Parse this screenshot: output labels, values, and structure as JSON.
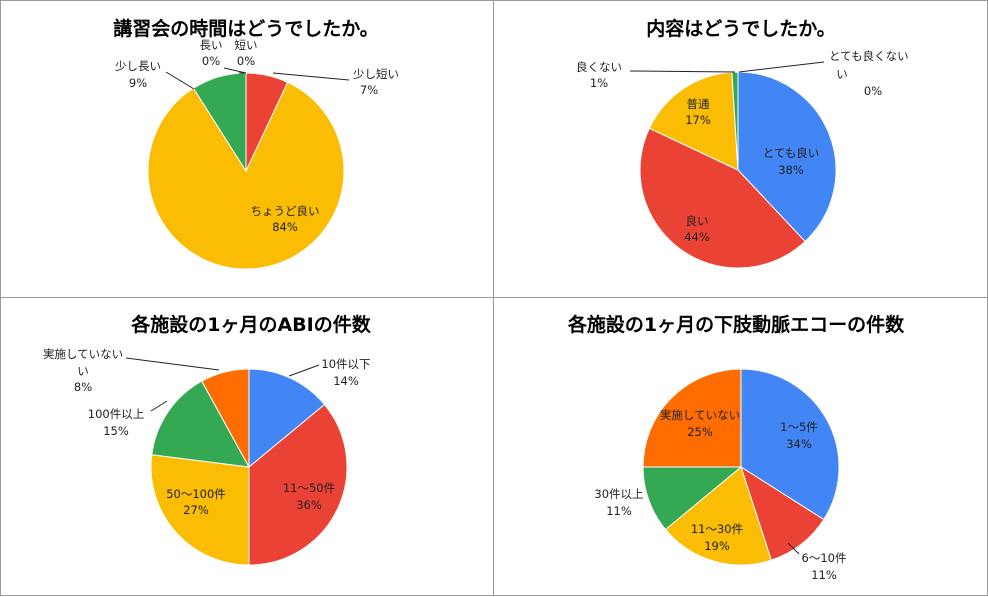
{
  "colors": {
    "blue": "#4285f4",
    "red": "#ea4335",
    "yellow": "#fbbc04",
    "green": "#34a853",
    "orange": "#ff6d01"
  },
  "chart_data": [
    {
      "type": "pie",
      "title": "講習会の時間はどうでしたか。",
      "slices": [
        {
          "label": "少し短い",
          "value": 7,
          "pct": "7%",
          "color": "#ea4335"
        },
        {
          "label": "ちょうど良い",
          "value": 84,
          "pct": "84%",
          "color": "#fbbc04"
        },
        {
          "label": "少し長い",
          "value": 9,
          "pct": "9%",
          "color": "#34a853"
        },
        {
          "label": "長い",
          "value": 0,
          "pct": "0%",
          "color": "#4285f4"
        },
        {
          "label": "短い",
          "value": 0,
          "pct": "0%",
          "color": "#ff6d01"
        }
      ]
    },
    {
      "type": "pie",
      "title": "内容はどうでしたか。",
      "slices": [
        {
          "label": "とても良い",
          "value": 38,
          "pct": "38%",
          "color": "#4285f4"
        },
        {
          "label": "良い",
          "value": 44,
          "pct": "44%",
          "color": "#ea4335"
        },
        {
          "label": "普通",
          "value": 17,
          "pct": "17%",
          "color": "#fbbc04"
        },
        {
          "label": "良くない",
          "value": 1,
          "pct": "1%",
          "color": "#34a853"
        },
        {
          "label": "とても良くない",
          "value": 0,
          "pct": "0%",
          "color": "#ff6d01"
        }
      ]
    },
    {
      "type": "pie",
      "title": "各施設の1ヶ月のABIの件数",
      "slices": [
        {
          "label": "10件以下",
          "value": 14,
          "pct": "14%",
          "color": "#4285f4"
        },
        {
          "label": "11～50件",
          "value": 36,
          "pct": "36%",
          "color": "#ea4335"
        },
        {
          "label": "50～100件",
          "value": 27,
          "pct": "27%",
          "color": "#fbbc04"
        },
        {
          "label": "100件以上",
          "value": 15,
          "pct": "15%",
          "color": "#34a853"
        },
        {
          "label": "実施していない",
          "value": 8,
          "pct": "8%",
          "color": "#ff6d01"
        }
      ]
    },
    {
      "type": "pie",
      "title": "各施設の1ヶ月の下肢動脈エコーの件数",
      "slices": [
        {
          "label": "1～5件",
          "value": 34,
          "pct": "34%",
          "color": "#4285f4"
        },
        {
          "label": "6～10件",
          "value": 11,
          "pct": "11%",
          "color": "#ea4335"
        },
        {
          "label": "11～30件",
          "value": 19,
          "pct": "19%",
          "color": "#fbbc04"
        },
        {
          "label": "30件以上",
          "value": 11,
          "pct": "11%",
          "color": "#34a853"
        },
        {
          "label": "実施していない",
          "value": 25,
          "pct": "25%",
          "color": "#ff6d01"
        }
      ]
    }
  ]
}
